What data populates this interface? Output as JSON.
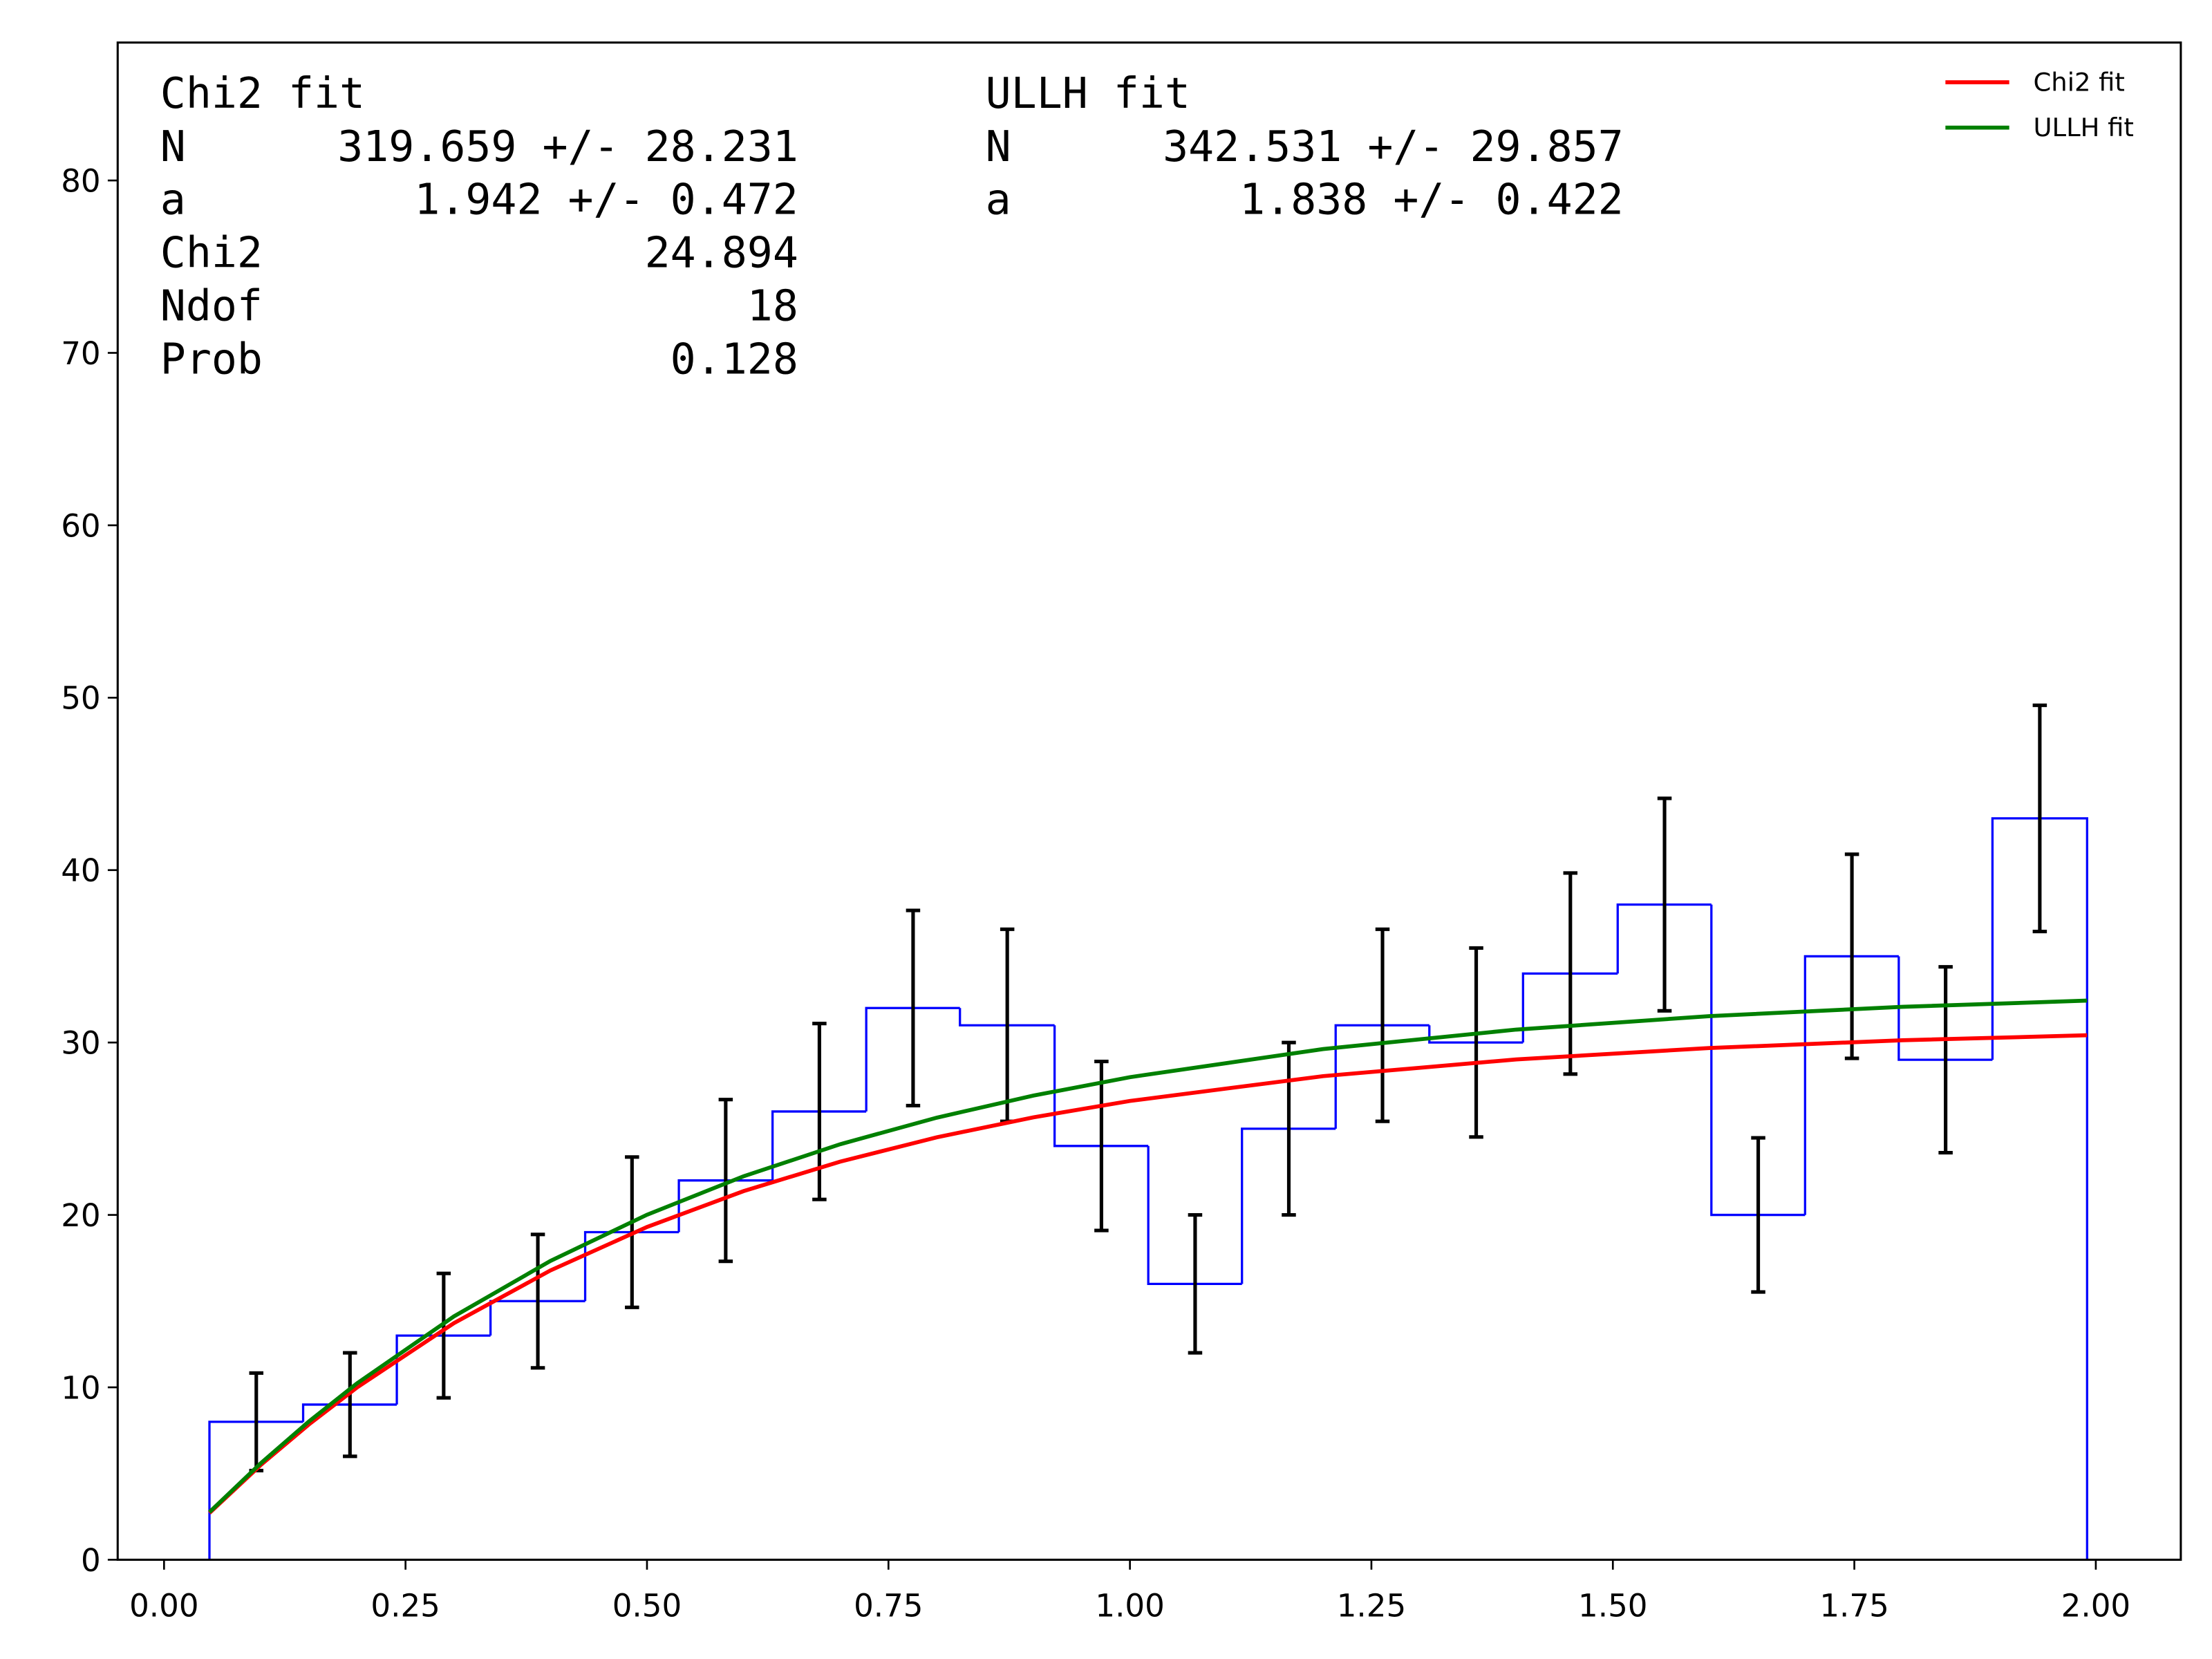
{
  "chart_data": {
    "type": "histogram",
    "bins": [
      0.047,
      0.144,
      0.241,
      0.338,
      0.436,
      0.533,
      0.63,
      0.727,
      0.824,
      0.922,
      1.019,
      1.116,
      1.213,
      1.31,
      1.407,
      1.505,
      1.602,
      1.699,
      1.796,
      1.893,
      1.991
    ],
    "values": [
      8,
      9,
      13,
      15,
      19,
      22,
      26,
      32,
      31,
      24,
      16,
      25,
      31,
      30,
      34,
      38,
      20,
      35,
      29,
      43
    ],
    "errors": [
      2.83,
      3,
      3.61,
      3.87,
      4.36,
      4.69,
      5.1,
      5.66,
      5.57,
      4.9,
      4,
      5,
      5.57,
      5.48,
      5.83,
      6.16,
      4.47,
      5.92,
      5.39,
      6.56
    ],
    "color": "#0000ff",
    "error_color": "#000000",
    "series": [
      {
        "name": "Chi2 fit",
        "color": "#ff0000",
        "x": [
          0.047,
          0.1,
          0.15,
          0.2,
          0.3,
          0.4,
          0.5,
          0.6,
          0.7,
          0.8,
          0.9,
          1.0,
          1.2,
          1.4,
          1.6,
          1.8,
          1.991
        ],
        "values": [
          2.71,
          5.49,
          7.85,
          10.0,
          13.72,
          16.78,
          19.3,
          21.38,
          23.09,
          24.5,
          25.66,
          26.61,
          28.05,
          29.02,
          29.68,
          30.13,
          30.42
        ]
      },
      {
        "name": "ULLH fit",
        "color": "#008000",
        "x": [
          0.047,
          0.1,
          0.15,
          0.2,
          0.3,
          0.4,
          0.5,
          0.6,
          0.7,
          0.8,
          0.9,
          1.0,
          1.2,
          1.4,
          1.6,
          1.8,
          1.991
        ],
        "values": [
          2.76,
          5.59,
          8.02,
          10.24,
          14.11,
          17.33,
          20.01,
          22.24,
          24.1,
          25.64,
          26.92,
          27.99,
          29.62,
          30.75,
          31.53,
          32.07,
          32.43
        ]
      }
    ],
    "xlim": [
      -0.048,
      2.088
    ],
    "ylim": [
      0,
      88
    ],
    "xticks": [
      {
        "value": 0,
        "label": "0.00"
      },
      {
        "value": 0.25,
        "label": "0.25"
      },
      {
        "value": 0.5,
        "label": "0.50"
      },
      {
        "value": 0.75,
        "label": "0.75"
      },
      {
        "value": 1,
        "label": "1.00"
      },
      {
        "value": 1.25,
        "label": "1.25"
      },
      {
        "value": 1.5,
        "label": "1.50"
      },
      {
        "value": 1.75,
        "label": "1.75"
      },
      {
        "value": 2,
        "label": "2.00"
      }
    ],
    "yticks": [
      0,
      10,
      20,
      30,
      40,
      50,
      60,
      70,
      80
    ],
    "legend": "upper right",
    "text_boxes": [
      {
        "title": "Chi2 fit",
        "rows": [
          [
            "N",
            "319.659 +/- 28.231"
          ],
          [
            "a",
            "1.942 +/- 0.472"
          ],
          [
            "Chi2",
            "24.894"
          ],
          [
            "Ndof",
            "18"
          ],
          [
            "Prob",
            "0.128"
          ]
        ]
      },
      {
        "title": "ULLH fit",
        "rows": [
          [
            "N",
            "342.531 +/- 29.857"
          ],
          [
            "a",
            "1.838 +/- 0.422"
          ]
        ]
      }
    ]
  }
}
